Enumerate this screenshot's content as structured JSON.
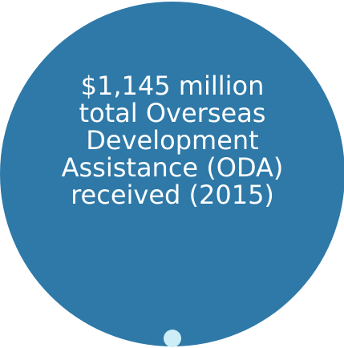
{
  "stat": {
    "lines": [
      "$1,145 million",
      "total Overseas",
      "Development",
      "Assistance (ODA)",
      "received (2015)"
    ]
  },
  "colors": {
    "circle": "#2e79a8",
    "text": "#ffffff",
    "dot": "#cdeef6",
    "background": "#ffffff"
  }
}
